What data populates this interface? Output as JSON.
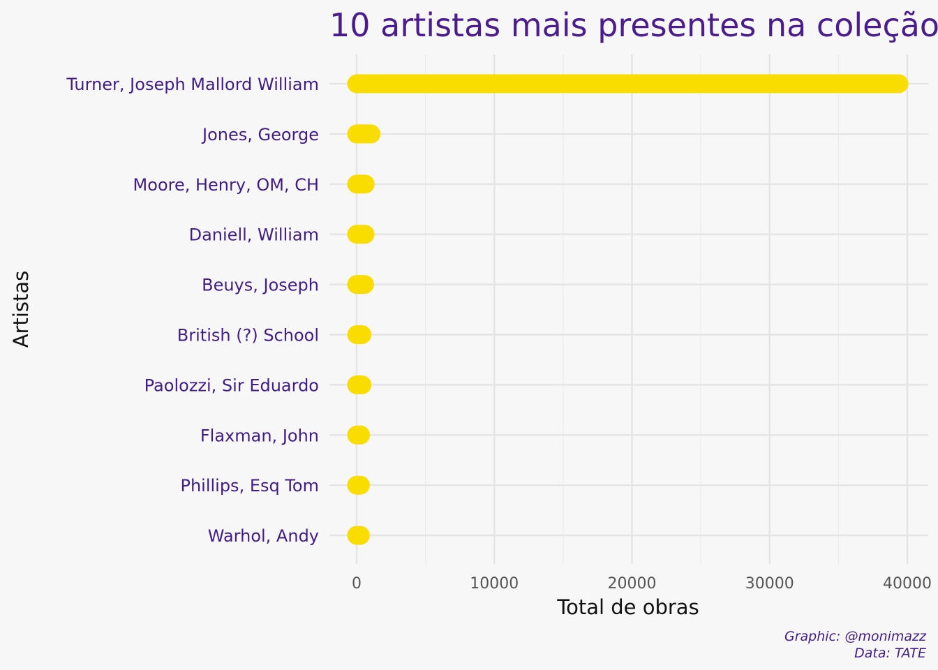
{
  "chart_data": {
    "type": "bar",
    "orientation": "horizontal",
    "title": "10 artistas mais presentes na coleção",
    "xlabel": "Total de obras",
    "ylabel": "Artistas",
    "categories": [
      "Turner, Joseph Mallord William",
      "Jones, George",
      "Moore, Henry, OM, CH",
      "Daniell, William",
      "Beuys, Joseph",
      "British (?) School",
      "Paolozzi, Sir Eduardo",
      "Flaxman, John",
      "Phillips, Esq Tom",
      "Warhol, Andy"
    ],
    "values": [
      39389,
      1046,
      623,
      612,
      578,
      388,
      385,
      287,
      274,
      272
    ],
    "xlim": [
      0,
      40000
    ],
    "xticks": [
      0,
      10000,
      20000,
      30000,
      40000
    ],
    "xtick_labels": [
      "0",
      "10000",
      "20000",
      "30000",
      "40000"
    ],
    "grid": true,
    "legend": "none",
    "bar_color": "#f9dc00",
    "text_color": "#3f1d84",
    "caption": [
      "Graphic: @monimazz",
      "Data: TATE"
    ]
  }
}
